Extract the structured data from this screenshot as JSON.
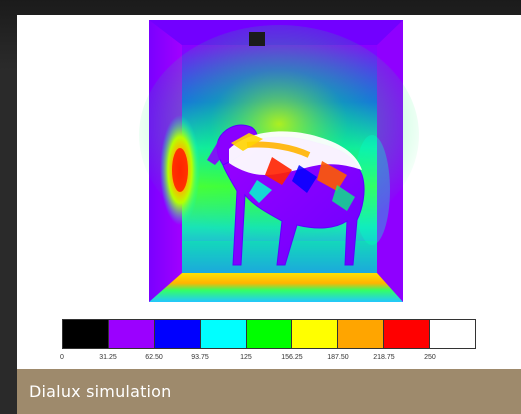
{
  "image": {
    "description_label": "",
    "legend": {
      "colors": [
        "#000000",
        "#9b00ff",
        "#0000ff",
        "#00ffff",
        "#00ff00",
        "#ffff00",
        "#ffa500",
        "#ff0000",
        "#ffffff"
      ],
      "ticks": [
        "0",
        "31.25",
        "62.50",
        "93.75",
        "125",
        "156.25",
        "187.50",
        "218.75",
        "250"
      ]
    }
  },
  "caption": {
    "text": "Dialux simulation"
  }
}
